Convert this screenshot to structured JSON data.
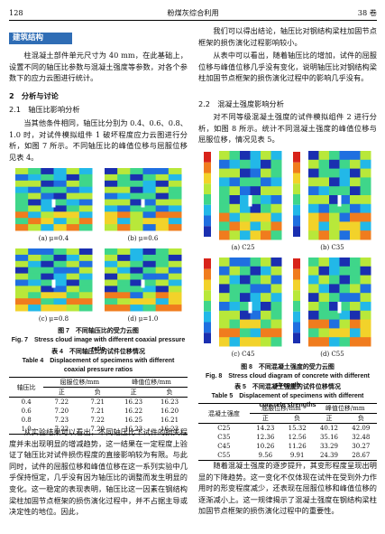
{
  "header": {
    "page": "128",
    "journal": "粉煤灰综合利用",
    "volume": "38 卷"
  },
  "section_tag": "建筑结构",
  "left": {
    "p1": "柱混凝土部件单元尺寸为 40 mm，在此基础上，设置不同的轴压比参数与混凝土强度等参数，对各个参数下的应力云图进行统计。",
    "h2": "2　分析与讨论",
    "h21": "2.1　轴压比影响分析",
    "p2": "当其他条件相同，轴压比分别为 0.4、0.6、0.8、1.0 时，对试件模拟组件 1 破坏程度应力云图进行分析，如图 7 所示。不同轴压比的峰值位移与屈服位移见表 4。",
    "figure7": {
      "panels": [
        "(a) μ=0.4",
        "(b) μ=0.6",
        "(c) μ=0.8",
        "(d) μ=1.0"
      ],
      "caption_cn": "图 7　不同轴压比的受力云图",
      "caption_en": "Fig. 7　Stress cloud image with different coaxial pressure ratio"
    },
    "table4": {
      "caption_cn": "表 4　不同轴压比的试件位移情况",
      "caption_en": "Table 4　Displacement of specimens with different coaxial pressure ratios",
      "header": [
        "轴压比",
        "屈服位移/mm",
        "峰值位移/mm"
      ],
      "subheader": [
        "正",
        "负",
        "正",
        "负"
      ],
      "rows": [
        [
          "0.4",
          "7.22",
          "7.21",
          "16.23",
          "16.23"
        ],
        [
          "0.6",
          "7.20",
          "7.21",
          "16.22",
          "16.20"
        ],
        [
          "0.8",
          "7.23",
          "7.22",
          "16.25",
          "16.21"
        ],
        [
          "1.0",
          "7.22",
          "7.20",
          "16.23",
          "16.23"
        ]
      ]
    },
    "p3": "从实验结果可以看出，不同轴压比下试件的损失程度并未出现明显的增减趋势，这一结果在一定程度上验证了轴压比对试件损伤程度的直接影响较为有限。与此同时，试件的屈服位移和峰值位移在这一系列实验中几乎保持恒定，几乎没有因为轴压比的调整而发生明显的变化。这一稳定的表现表明，轴压比这一因素在钢结构梁柱加固节点框架的损伤演化过程中，并不占据主导或决定性的地位。因此，"
  },
  "right": {
    "p1": "我们可以得出结论，轴压比对钢结构梁柱加固节点框架的损伤演化过程影响较小。",
    "p2": "从表中可以看出，随着轴压比的增加，试件的屈服位移与峰值位移几乎没有变化，说明轴压比对钢结构梁柱加固节点框架的损伤演化过程中的影响几乎没有。",
    "h22": "2.2　混凝土强度影响分析",
    "p3": "对不同等级混凝土强度的试件模拟组件 2 进行分析，如图 8 所示。统计不同混凝土强度的峰值位移与屈服位移，情况见表 5。",
    "figure8": {
      "panels": [
        "(a) C25",
        "(b) C35",
        "(c) C45",
        "(d) C55"
      ],
      "caption_cn": "图 8　不同混凝土强度的受力云图",
      "caption_en": "Fig. 8　Stress cloud diagram of concrete with different strength"
    },
    "table5": {
      "caption_cn": "表 5　不同混凝土强度的试件位移情况",
      "caption_en": "Table 5　Displacement of specimens with different concrete strengths",
      "header": [
        "混凝土强度",
        "屈服位移/mm",
        "峰值位移/mm"
      ],
      "subheader": [
        "正",
        "负",
        "正",
        "负"
      ],
      "rows": [
        [
          "C25",
          "14.23",
          "15.32",
          "40.12",
          "42.09"
        ],
        [
          "C35",
          "12.36",
          "12.56",
          "35.16",
          "32.48"
        ],
        [
          "C45",
          "10.26",
          "11.26",
          "33.29",
          "30.27"
        ],
        [
          "C55",
          "9.56",
          "9.91",
          "24.39",
          "28.67"
        ]
      ]
    },
    "p4": "随着混凝土强度的逐步提升，其变形程度呈现出明显的下降趋势。这一变化不仅体现在试件在受到外力作用时的形变程度减少，还表现在屈服位移和峰值位移的逐渐减小上。这一规律揭示了混凝土强度在钢结构梁柱加固节点框架的损伤演化过程中的重要性。"
  }
}
